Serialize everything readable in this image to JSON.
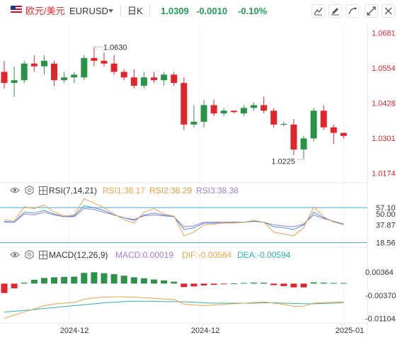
{
  "header": {
    "pair_cn": "欧元/美元",
    "symbol": "EURUSD",
    "timeframe": "日K",
    "price": "1.0309",
    "change": "-0.0010",
    "change_pct": "-0.10%"
  },
  "colors": {
    "up": "#2b9348",
    "down": "#e0262b",
    "price_label": "#e0262b",
    "change_color": "#1f9d55",
    "rsi1": "#f0a14a",
    "rsi2": "#4a90d9",
    "rsi3": "#9b7fd4",
    "rsi_band": "#4aa8e0",
    "dif": "#f0a14a",
    "dea": "#2bb5a8",
    "macd_label": "#9b7fd4",
    "axis_text": "#333333"
  },
  "icons": [
    "us-flag-icon",
    "caret-down-icon",
    "indicator-settings-icon",
    "edit-icon",
    "draw-icon",
    "fullscreen-icon",
    "close-icon",
    "eye-icon",
    "gear-icon",
    "grid-icon"
  ],
  "rsi_panel": {
    "label": "RSI(7,14,21)",
    "rsi1": "RSI1:38.17",
    "rsi2": "RSI2:38.29",
    "rsi3": "RSI3:38.38"
  },
  "macd_panel": {
    "label": "MACD(12,26,9)",
    "macd": "MACD:0.00019",
    "dif": "DIF:-0.00584",
    "dea": "DEA:-0.00594"
  },
  "chart_data": {
    "type": "candlestick",
    "price_axis": {
      "ticks": [
        "1.0681",
        "1.0554",
        "1.0428",
        "1.0301",
        "1.0174"
      ],
      "ylim": [
        1.014,
        1.0715
      ]
    },
    "annotations": {
      "high": "1.0630",
      "low": "1.0225"
    },
    "x_ticks": [
      "2024-12",
      "2024-12",
      "2025-01"
    ],
    "candles": [
      {
        "o": 1.054,
        "h": 1.058,
        "l": 1.048,
        "c": 1.05
      },
      {
        "o": 1.05,
        "h": 1.056,
        "l": 1.045,
        "c": 1.051
      },
      {
        "o": 1.051,
        "h": 1.058,
        "l": 1.05,
        "c": 1.057
      },
      {
        "o": 1.057,
        "h": 1.06,
        "l": 1.054,
        "c": 1.056
      },
      {
        "o": 1.056,
        "h": 1.06,
        "l": 1.053,
        "c": 1.058
      },
      {
        "o": 1.057,
        "h": 1.058,
        "l": 1.049,
        "c": 1.051
      },
      {
        "o": 1.051,
        "h": 1.054,
        "l": 1.05,
        "c": 1.052
      },
      {
        "o": 1.052,
        "h": 1.054,
        "l": 1.05,
        "c": 1.053
      },
      {
        "o": 1.052,
        "h": 1.06,
        "l": 1.051,
        "c": 1.059
      },
      {
        "o": 1.059,
        "h": 1.063,
        "l": 1.056,
        "c": 1.058
      },
      {
        "o": 1.058,
        "h": 1.061,
        "l": 1.056,
        "c": 1.057
      },
      {
        "o": 1.057,
        "h": 1.06,
        "l": 1.053,
        "c": 1.054
      },
      {
        "o": 1.054,
        "h": 1.055,
        "l": 1.051,
        "c": 1.052
      },
      {
        "o": 1.052,
        "h": 1.055,
        "l": 1.048,
        "c": 1.049
      },
      {
        "o": 1.049,
        "h": 1.054,
        "l": 1.048,
        "c": 1.052
      },
      {
        "o": 1.052,
        "h": 1.054,
        "l": 1.05,
        "c": 1.051
      },
      {
        "o": 1.051,
        "h": 1.054,
        "l": 1.049,
        "c": 1.053
      },
      {
        "o": 1.053,
        "h": 1.054,
        "l": 1.049,
        "c": 1.05
      },
      {
        "o": 1.05,
        "h": 1.052,
        "l": 1.033,
        "c": 1.035
      },
      {
        "o": 1.035,
        "h": 1.042,
        "l": 1.034,
        "c": 1.036
      },
      {
        "o": 1.036,
        "h": 1.044,
        "l": 1.034,
        "c": 1.042
      },
      {
        "o": 1.042,
        "h": 1.044,
        "l": 1.038,
        "c": 1.039
      },
      {
        "o": 1.039,
        "h": 1.041,
        "l": 1.038,
        "c": 1.04
      },
      {
        "o": 1.04,
        "h": 1.04,
        "l": 1.039,
        "c": 1.0395
      },
      {
        "o": 1.039,
        "h": 1.042,
        "l": 1.038,
        "c": 1.041
      },
      {
        "o": 1.041,
        "h": 1.043,
        "l": 1.04,
        "c": 1.042
      },
      {
        "o": 1.042,
        "h": 1.045,
        "l": 1.039,
        "c": 1.04
      },
      {
        "o": 1.04,
        "h": 1.041,
        "l": 1.034,
        "c": 1.035
      },
      {
        "o": 1.035,
        "h": 1.036,
        "l": 1.0345,
        "c": 1.0352
      },
      {
        "o": 1.035,
        "h": 1.037,
        "l": 1.024,
        "c": 1.026
      },
      {
        "o": 1.026,
        "h": 1.031,
        "l": 1.0225,
        "c": 1.03
      },
      {
        "o": 1.03,
        "h": 1.041,
        "l": 1.029,
        "c": 1.04
      },
      {
        "o": 1.04,
        "h": 1.042,
        "l": 1.033,
        "c": 1.034
      },
      {
        "o": 1.034,
        "h": 1.035,
        "l": 1.028,
        "c": 1.032
      },
      {
        "o": 1.032,
        "h": 1.032,
        "l": 1.03,
        "c": 1.0309
      }
    ],
    "rsi": {
      "ticks": [
        "57.10",
        "50.00",
        "37.87",
        "18.56"
      ],
      "ylim": [
        15,
        65
      ],
      "rsi1": [
        44,
        42,
        58,
        56,
        60,
        52,
        48,
        49,
        67,
        62,
        57,
        50,
        44,
        40,
        52,
        56,
        50,
        48,
        26,
        30,
        38,
        39,
        40,
        40,
        41,
        43,
        41,
        30,
        28,
        26,
        35,
        58,
        47,
        41,
        38
      ],
      "rsi2": [
        42,
        41,
        52,
        51,
        54,
        50,
        47,
        48,
        59,
        57,
        54,
        49,
        46,
        43,
        49,
        51,
        49,
        47,
        33,
        35,
        40,
        40,
        41,
        41,
        41,
        42,
        41,
        36,
        35,
        33,
        38,
        52,
        46,
        42,
        39
      ],
      "rsi3": [
        41,
        41,
        50,
        49,
        52,
        49,
        47,
        47,
        56,
        55,
        52,
        49,
        46,
        44,
        48,
        49,
        48,
        47,
        36,
        37,
        41,
        41,
        41,
        41,
        41,
        42,
        41,
        38,
        37,
        36,
        39,
        49,
        45,
        42,
        39
      ]
    },
    "macd": {
      "ticks": [
        "0.00364",
        "-0.00370",
        "-0.01104"
      ],
      "ylim": [
        -0.0125,
        0.0075
      ],
      "hist": [
        -0.003,
        -0.0015,
        0.0003,
        0.0012,
        0.0018,
        0.002,
        0.0021,
        0.0022,
        0.0034,
        0.0036,
        0.0033,
        0.003,
        0.0025,
        0.002,
        0.0017,
        0.0013,
        0.001,
        0.0006,
        -0.0011,
        -0.0009,
        -0.0006,
        -0.0004,
        -0.0002,
        0.0001,
        0.0002,
        0.0003,
        0.0003,
        -0.0005,
        -0.0008,
        -0.0012,
        -0.0012,
        0.0004,
        0.0003,
        0.0002,
        0.0002
      ],
      "dif": [
        -0.011,
        -0.01,
        -0.009,
        -0.008,
        -0.007,
        -0.0065,
        -0.0062,
        -0.006,
        -0.005,
        -0.0045,
        -0.0043,
        -0.0042,
        -0.0042,
        -0.0043,
        -0.0045,
        -0.0047,
        -0.0049,
        -0.005,
        -0.0065,
        -0.0068,
        -0.007,
        -0.0068,
        -0.0066,
        -0.0064,
        -0.0062,
        -0.006,
        -0.0058,
        -0.0062,
        -0.0066,
        -0.0072,
        -0.0072,
        -0.0062,
        -0.006,
        -0.0059,
        -0.0058
      ],
      "dea": [
        -0.009,
        -0.0088,
        -0.0085,
        -0.0082,
        -0.0079,
        -0.0076,
        -0.0073,
        -0.007,
        -0.0067,
        -0.0064,
        -0.0061,
        -0.0059,
        -0.0057,
        -0.0056,
        -0.0056,
        -0.0056,
        -0.0057,
        -0.0057,
        -0.0058,
        -0.0059,
        -0.0061,
        -0.0062,
        -0.0062,
        -0.0062,
        -0.0062,
        -0.0062,
        -0.0061,
        -0.0061,
        -0.0062,
        -0.0063,
        -0.0064,
        -0.0064,
        -0.0063,
        -0.0062,
        -0.006
      ]
    }
  }
}
